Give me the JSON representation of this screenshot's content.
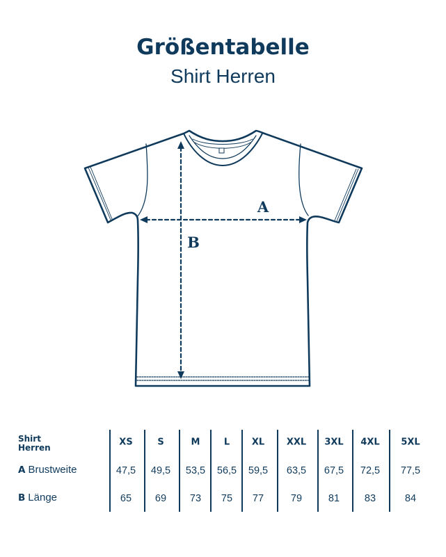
{
  "header": {
    "title": "Größentabelle",
    "subtitle": "Shirt Herren"
  },
  "diagram": {
    "label_a": "A",
    "label_b": "B"
  },
  "table": {
    "corner_line1": "Shirt",
    "corner_line2": "Herren",
    "sizes": [
      "XS",
      "S",
      "M",
      "L",
      "XL",
      "XXL",
      "3XL",
      "4XL",
      "5XL"
    ],
    "rows": [
      {
        "key": "A",
        "label": "Brustweite",
        "values": [
          "47,5",
          "49,5",
          "53,5",
          "56,5",
          "59,5",
          "63,5",
          "67,5",
          "72,5",
          "77,5"
        ]
      },
      {
        "key": "B",
        "label": "Länge",
        "values": [
          "65",
          "69",
          "73",
          "75",
          "77",
          "79",
          "81",
          "83",
          "84"
        ]
      }
    ]
  },
  "colors": {
    "ink": "#0f3a5c",
    "background": "#ffffff"
  }
}
